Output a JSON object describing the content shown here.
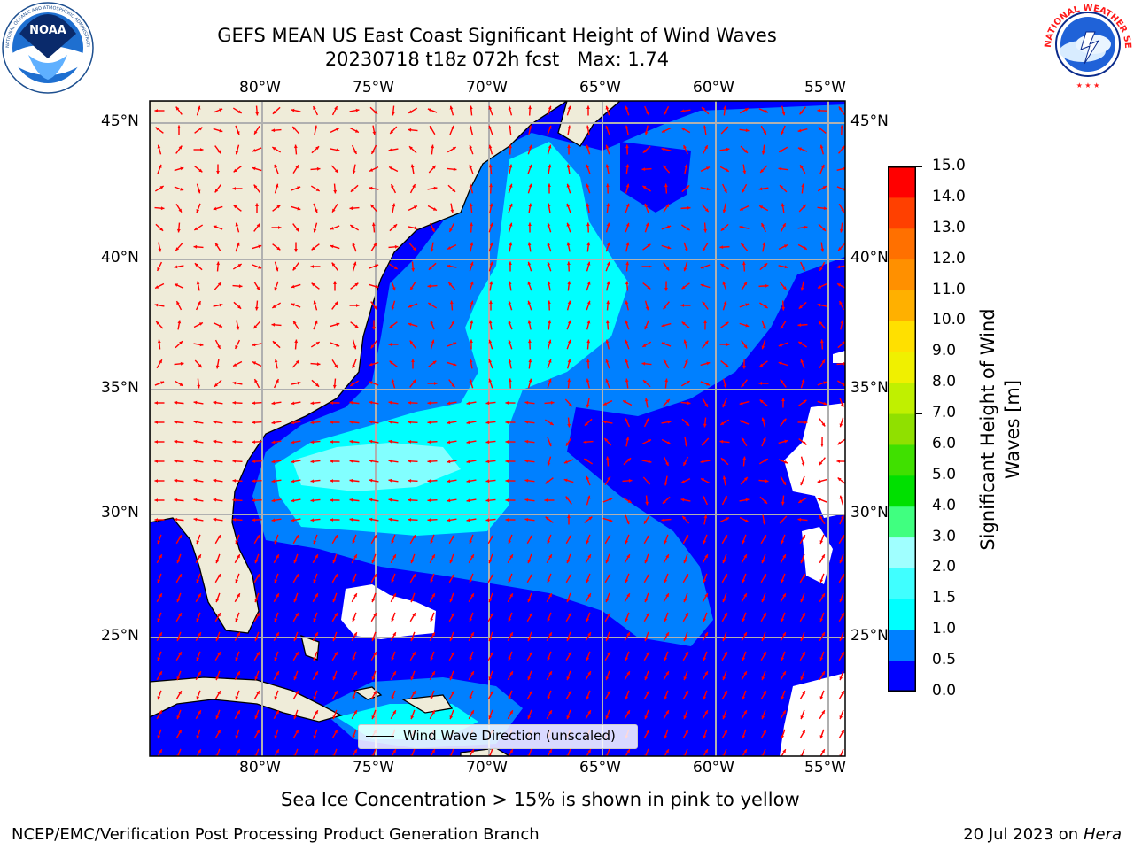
{
  "header": {
    "title_line1": "GEFS MEAN US East Coast Significant Height of Wind Waves",
    "title_line2": "20230718 t18z 072h fcst   Max: 1.74"
  },
  "logos": {
    "noaa_text": "NOAA",
    "noaa_ring_text": "NATIONAL OCEANIC AND ATMOSPHERIC ADMINISTRATION · U.S. DEPARTMENT OF COMMERCE",
    "nws_ring_text": "NATIONAL WEATHER SERVICE"
  },
  "map": {
    "lon_labels": [
      "80°W",
      "75°W",
      "70°W",
      "65°W",
      "60°W",
      "55°W"
    ],
    "lat_labels": [
      "45°N",
      "40°N",
      "35°N",
      "30°N",
      "25°N"
    ],
    "legend_label": "Wind Wave Direction (unscaled)",
    "land_color": "#efecd9",
    "vector_color": "#ff0000"
  },
  "colorbar": {
    "label": "Significant Height of Wind Waves [m]",
    "ticks": [
      "0.0",
      "0.5",
      "1.0",
      "1.5",
      "2.0",
      "3.0",
      "4.0",
      "5.0",
      "6.0",
      "7.0",
      "8.0",
      "9.0",
      "10.0",
      "11.0",
      "12.0",
      "13.0",
      "14.0",
      "15.0"
    ],
    "colors": [
      "#0000ff",
      "#0080ff",
      "#00ffff",
      "#40ffff",
      "#a0ffff",
      "#40ff80",
      "#00e000",
      "#40e000",
      "#90e000",
      "#c0f000",
      "#f0f000",
      "#ffe000",
      "#ffb000",
      "#ff9000",
      "#ff7000",
      "#ff4000",
      "#ff0000"
    ]
  },
  "footer": {
    "note": "Sea Ice Concentration > 15% is shown in pink to yellow",
    "left": "NCEP/EMC/Verification Post Processing Product Generation Branch",
    "right_date": "20 Jul 2023 on ",
    "right_host": "Hera"
  }
}
